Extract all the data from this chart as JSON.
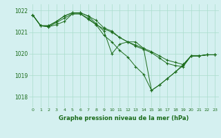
{
  "title": "Graphe pression niveau de la mer (hPa)",
  "background_color": "#d4f0f0",
  "grid_color": "#aaddcc",
  "line_color": "#1a6b1a",
  "ylim": [
    1017.5,
    1022.3
  ],
  "xlim": [
    -0.5,
    23.5
  ],
  "yticks": [
    1018,
    1019,
    1020,
    1021,
    1022
  ],
  "xticks": [
    0,
    1,
    2,
    3,
    4,
    5,
    6,
    7,
    8,
    9,
    10,
    11,
    12,
    13,
    14,
    15,
    16,
    17,
    18,
    19,
    20,
    21,
    22,
    23
  ],
  "series": [
    [
      1021.8,
      1021.3,
      1021.3,
      1021.5,
      1021.75,
      1021.9,
      1021.9,
      1021.75,
      1021.55,
      1021.2,
      1021.05,
      1020.75,
      1020.55,
      1020.4,
      1020.25,
      1020.1,
      1019.9,
      1019.7,
      1019.6,
      1019.5,
      1019.9,
      1019.9,
      1019.95,
      1019.95
    ],
    [
      1021.8,
      1021.3,
      1021.3,
      1021.5,
      1021.75,
      1021.9,
      1021.9,
      1021.75,
      1021.4,
      1021.05,
      1020.0,
      1020.45,
      1020.55,
      1020.55,
      1020.25,
      1018.3,
      1018.55,
      1018.85,
      1019.15,
      1019.5,
      1019.9,
      1019.9,
      1019.95,
      1019.95
    ],
    [
      1021.8,
      1021.3,
      1021.25,
      1021.45,
      1021.65,
      1021.85,
      1021.85,
      1021.6,
      1021.35,
      1020.85,
      1020.55,
      1020.15,
      1019.85,
      1019.4,
      1019.05,
      1018.3,
      1018.55,
      1018.85,
      1019.15,
      1019.45,
      1019.9,
      1019.9,
      1019.95,
      1019.95
    ],
    [
      1021.8,
      1021.3,
      1021.25,
      1021.35,
      1021.5,
      1021.85,
      1021.85,
      1021.65,
      1021.35,
      1021.15,
      1021.0,
      1020.75,
      1020.55,
      1020.35,
      1020.2,
      1020.05,
      1019.8,
      1019.55,
      1019.45,
      1019.4,
      1019.9,
      1019.9,
      1019.95,
      1019.95
    ]
  ]
}
